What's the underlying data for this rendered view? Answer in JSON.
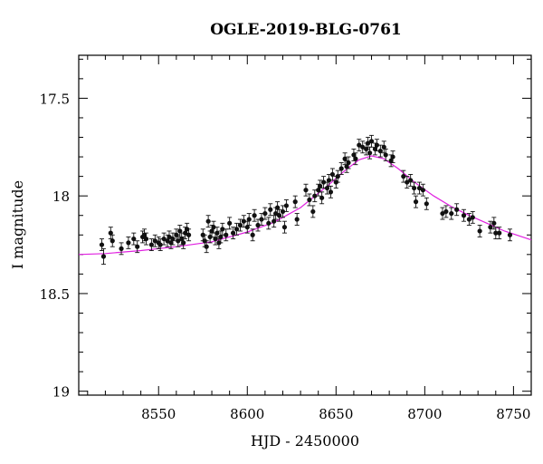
{
  "chart_data": {
    "type": "scatter",
    "title": "OGLE-2019-BLG-0761",
    "xlabel": "HJD - 2450000",
    "ylabel": "I magnitude",
    "xlim": [
      8505,
      8760
    ],
    "ylim": [
      19.02,
      17.28
    ],
    "y_inverted": true,
    "x_ticks": [
      8550,
      8600,
      8650,
      8700,
      8750
    ],
    "y_ticks": [
      17.5,
      18,
      18.5,
      19
    ],
    "x_tick_labels": [
      "8550",
      "8600",
      "8650",
      "8700",
      "8750"
    ],
    "y_tick_labels": [
      "17.5",
      "18",
      "18.5",
      "19"
    ],
    "grid": false,
    "legend": null,
    "colors": {
      "points": "#111111",
      "model": "#e020e0",
      "frame": "#000000"
    },
    "series": [
      {
        "type": "scatter_errorbar",
        "points": [
          [
            8518,
            18.25,
            0.03
          ],
          [
            8519,
            18.31,
            0.04
          ],
          [
            8523,
            18.19,
            0.03
          ],
          [
            8524,
            18.23,
            0.03
          ],
          [
            8529,
            18.27,
            0.03
          ],
          [
            8533,
            18.24,
            0.03
          ],
          [
            8536,
            18.22,
            0.03
          ],
          [
            8538,
            18.26,
            0.03
          ],
          [
            8541,
            18.21,
            0.03
          ],
          [
            8542,
            18.2,
            0.03
          ],
          [
            8543,
            18.22,
            0.03
          ],
          [
            8546,
            18.25,
            0.03
          ],
          [
            8548,
            18.23,
            0.03
          ],
          [
            8550,
            18.24,
            0.03
          ],
          [
            8551,
            18.25,
            0.03
          ],
          [
            8553,
            18.22,
            0.03
          ],
          [
            8555,
            18.23,
            0.03
          ],
          [
            8556,
            18.21,
            0.03
          ],
          [
            8557,
            18.24,
            0.03
          ],
          [
            8558,
            18.22,
            0.03
          ],
          [
            8560,
            18.2,
            0.03
          ],
          [
            8561,
            18.23,
            0.03
          ],
          [
            8562,
            18.18,
            0.03
          ],
          [
            8563,
            18.22,
            0.03
          ],
          [
            8564,
            18.24,
            0.03
          ],
          [
            8565,
            18.19,
            0.03
          ],
          [
            8566,
            18.17,
            0.03
          ],
          [
            8567,
            18.2,
            0.03
          ],
          [
            8575,
            18.2,
            0.03
          ],
          [
            8576,
            18.23,
            0.03
          ],
          [
            8577,
            18.26,
            0.03
          ],
          [
            8578,
            18.13,
            0.03
          ],
          [
            8579,
            18.21,
            0.03
          ],
          [
            8580,
            18.18,
            0.03
          ],
          [
            8581,
            18.16,
            0.03
          ],
          [
            8582,
            18.22,
            0.03
          ],
          [
            8583,
            18.19,
            0.03
          ],
          [
            8584,
            18.24,
            0.03
          ],
          [
            8585,
            18.21,
            0.03
          ],
          [
            8586,
            18.17,
            0.03
          ],
          [
            8588,
            18.2,
            0.03
          ],
          [
            8590,
            18.14,
            0.03
          ],
          [
            8592,
            18.19,
            0.03
          ],
          [
            8594,
            18.17,
            0.03
          ],
          [
            8596,
            18.15,
            0.03
          ],
          [
            8598,
            18.13,
            0.03
          ],
          [
            8600,
            18.16,
            0.03
          ],
          [
            8601,
            18.12,
            0.03
          ],
          [
            8603,
            18.2,
            0.03
          ],
          [
            8604,
            18.1,
            0.03
          ],
          [
            8606,
            18.15,
            0.03
          ],
          [
            8608,
            18.12,
            0.03
          ],
          [
            8610,
            18.09,
            0.03
          ],
          [
            8612,
            18.14,
            0.03
          ],
          [
            8613,
            18.07,
            0.03
          ],
          [
            8615,
            18.13,
            0.03
          ],
          [
            8616,
            18.09,
            0.03
          ],
          [
            8617,
            18.06,
            0.03
          ],
          [
            8618,
            18.1,
            0.03
          ],
          [
            8620,
            18.08,
            0.03
          ],
          [
            8621,
            18.16,
            0.03
          ],
          [
            8622,
            18.05,
            0.03
          ],
          [
            8627,
            18.03,
            0.03
          ],
          [
            8628,
            18.12,
            0.03
          ],
          [
            8633,
            17.97,
            0.03
          ],
          [
            8635,
            18.02,
            0.03
          ],
          [
            8637,
            18.08,
            0.03
          ],
          [
            8638,
            18.0,
            0.03
          ],
          [
            8640,
            17.97,
            0.03
          ],
          [
            8641,
            17.95,
            0.03
          ],
          [
            8642,
            18.01,
            0.03
          ],
          [
            8643,
            17.93,
            0.03
          ],
          [
            8645,
            17.96,
            0.03
          ],
          [
            8646,
            17.92,
            0.03
          ],
          [
            8647,
            17.98,
            0.03
          ],
          [
            8648,
            17.89,
            0.03
          ],
          [
            8650,
            17.93,
            0.03
          ],
          [
            8651,
            17.9,
            0.03
          ],
          [
            8653,
            17.86,
            0.03
          ],
          [
            8655,
            17.81,
            0.03
          ],
          [
            8656,
            17.85,
            0.03
          ],
          [
            8657,
            17.83,
            0.03
          ],
          [
            8660,
            17.79,
            0.03
          ],
          [
            8661,
            17.81,
            0.03
          ],
          [
            8663,
            17.74,
            0.03
          ],
          [
            8665,
            17.75,
            0.03
          ],
          [
            8667,
            17.76,
            0.03
          ],
          [
            8668,
            17.73,
            0.03
          ],
          [
            8669,
            17.78,
            0.03
          ],
          [
            8670,
            17.72,
            0.03
          ],
          [
            8672,
            17.76,
            0.03
          ],
          [
            8673,
            17.74,
            0.03
          ],
          [
            8675,
            17.77,
            0.03
          ],
          [
            8677,
            17.75,
            0.03
          ],
          [
            8678,
            17.79,
            0.03
          ],
          [
            8681,
            17.82,
            0.03
          ],
          [
            8682,
            17.8,
            0.03
          ],
          [
            8688,
            17.9,
            0.03
          ],
          [
            8690,
            17.93,
            0.03
          ],
          [
            8692,
            17.92,
            0.03
          ],
          [
            8694,
            17.96,
            0.03
          ],
          [
            8695,
            18.03,
            0.03
          ],
          [
            8697,
            17.96,
            0.03
          ],
          [
            8699,
            17.97,
            0.03
          ],
          [
            8701,
            18.04,
            0.03
          ],
          [
            8710,
            18.09,
            0.03
          ],
          [
            8712,
            18.08,
            0.03
          ],
          [
            8715,
            18.09,
            0.03
          ],
          [
            8718,
            18.07,
            0.03
          ],
          [
            8722,
            18.1,
            0.03
          ],
          [
            8725,
            18.12,
            0.03
          ],
          [
            8727,
            18.11,
            0.03
          ],
          [
            8731,
            18.18,
            0.03
          ],
          [
            8737,
            18.16,
            0.03
          ],
          [
            8739,
            18.14,
            0.03
          ],
          [
            8740,
            18.19,
            0.03
          ],
          [
            8742,
            18.19,
            0.03
          ],
          [
            8748,
            18.2,
            0.03
          ]
        ]
      },
      {
        "type": "line",
        "points": [
          [
            8505,
            18.3
          ],
          [
            8520,
            18.295
          ],
          [
            8540,
            18.28
          ],
          [
            8560,
            18.26
          ],
          [
            8580,
            18.235
          ],
          [
            8600,
            18.185
          ],
          [
            8615,
            18.135
          ],
          [
            8630,
            18.06
          ],
          [
            8645,
            17.95
          ],
          [
            8655,
            17.87
          ],
          [
            8663,
            17.815
          ],
          [
            8670,
            17.795
          ],
          [
            8677,
            17.81
          ],
          [
            8685,
            17.86
          ],
          [
            8695,
            17.935
          ],
          [
            8705,
            18.0
          ],
          [
            8715,
            18.055
          ],
          [
            8725,
            18.1
          ],
          [
            8735,
            18.14
          ],
          [
            8745,
            18.18
          ],
          [
            8760,
            18.225
          ]
        ]
      }
    ]
  }
}
